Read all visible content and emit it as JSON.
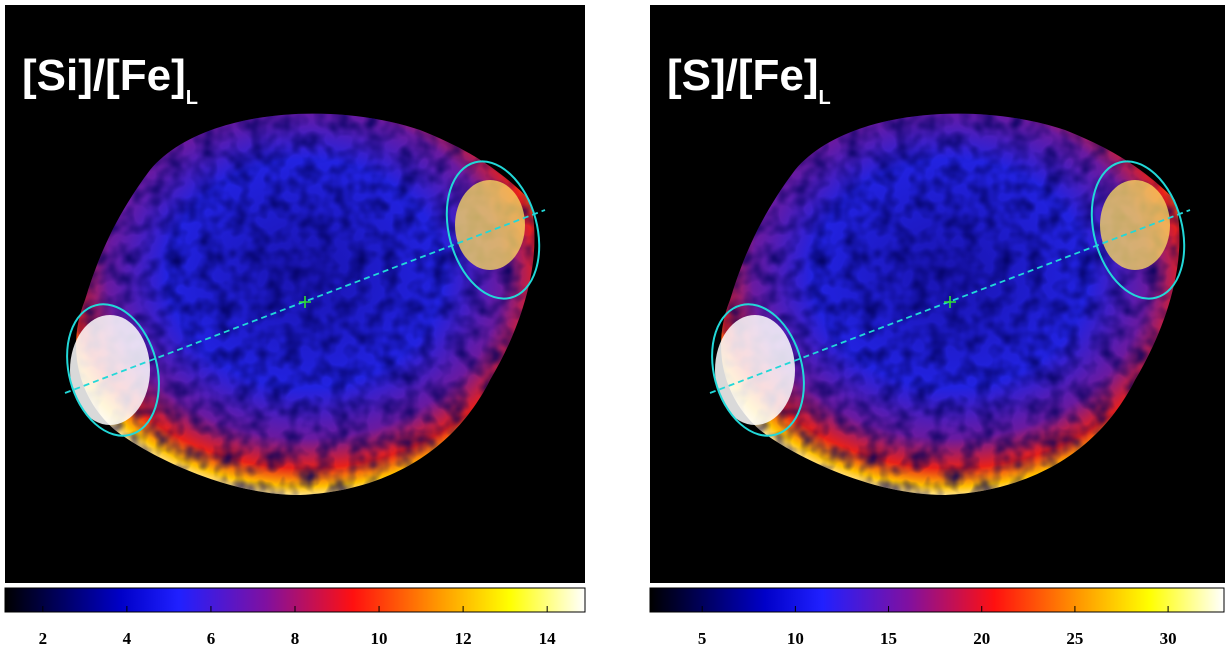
{
  "panels": [
    {
      "label": "[Si]/[Fe]",
      "subscript": "L",
      "colorbar": {
        "lim": [
          1.1,
          14.9
        ],
        "ticks": [
          2,
          4,
          6,
          8,
          10,
          12,
          14
        ]
      }
    },
    {
      "label": "[S]/[Fe]",
      "subscript": "L",
      "colorbar": {
        "lim": [
          2.2,
          33
        ],
        "ticks": [
          5,
          10,
          15,
          20,
          25,
          30
        ]
      }
    }
  ]
}
